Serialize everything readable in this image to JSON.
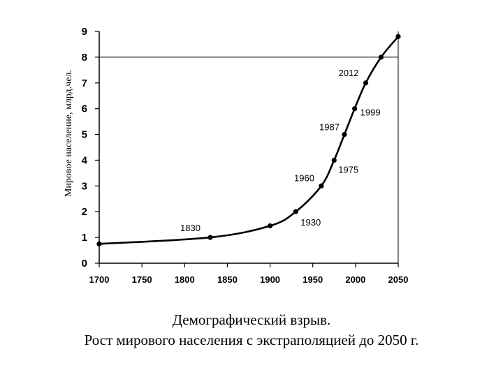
{
  "chart_data": {
    "type": "line",
    "ylabel": "Мировое население, млрд.чел.",
    "xlim": [
      1700,
      2050
    ],
    "ylim": [
      0,
      9
    ],
    "x_ticks": [
      1700,
      1750,
      1800,
      1850,
      1900,
      1950,
      2000,
      2050
    ],
    "y_ticks": [
      0,
      1,
      2,
      3,
      4,
      5,
      6,
      7,
      8,
      9
    ],
    "grid": false,
    "reference_line": {
      "y": 8
    },
    "series": [
      {
        "points": [
          {
            "x": 1700,
            "y": 0.75
          },
          {
            "x": 1830,
            "y": 1.0
          },
          {
            "x": 1900,
            "y": 1.45
          },
          {
            "x": 1930,
            "y": 2.0
          },
          {
            "x": 1960,
            "y": 3.0
          },
          {
            "x": 1975,
            "y": 4.0
          },
          {
            "x": 1987,
            "y": 5.0
          },
          {
            "x": 1999,
            "y": 6.0
          },
          {
            "x": 2012,
            "y": 7.0
          },
          {
            "x": 2030,
            "y": 8.0
          },
          {
            "x": 2050,
            "y": 8.8
          }
        ]
      }
    ],
    "annotations": [
      {
        "text": "1830",
        "x": 1830,
        "y": 1.0
      },
      {
        "text": "1930",
        "x": 1930,
        "y": 2.0
      },
      {
        "text": "1960",
        "x": 1960,
        "y": 3.0
      },
      {
        "text": "1975",
        "x": 1975,
        "y": 4.0
      },
      {
        "text": "1987",
        "x": 1987,
        "y": 5.0
      },
      {
        "text": "1999",
        "x": 1999,
        "y": 6.0
      },
      {
        "text": "2012",
        "x": 2012,
        "y": 7.0
      }
    ]
  },
  "caption": {
    "line1": "Демографический взрыв.",
    "line2": "Рост мирового населения с экстраполяцией до 2050 г."
  }
}
